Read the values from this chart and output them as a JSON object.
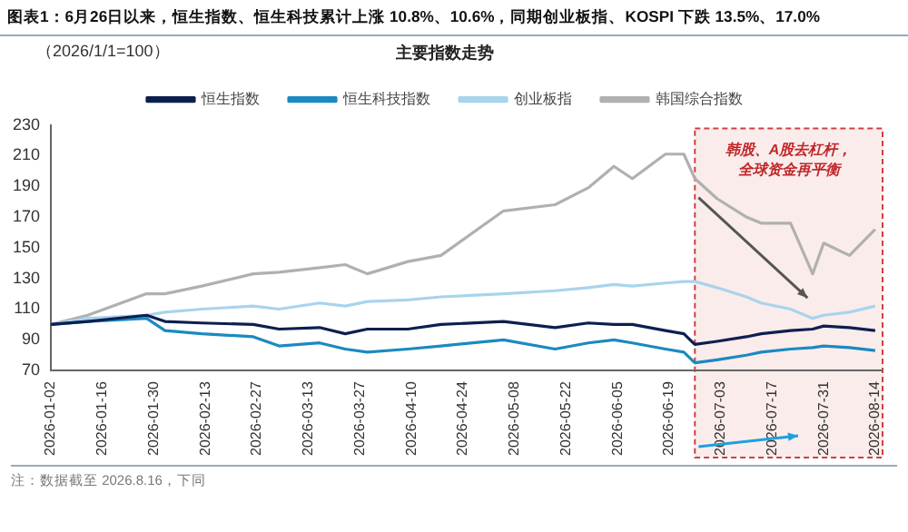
{
  "chart_data": {
    "type": "line",
    "title": "主要指数走势",
    "subtitle": "图表1：6月26日以来，恒生指数、恒生科技累计上涨 10.8%、10.6%，同期创业板指、KOSPI 下跌 13.5%、17.0%",
    "ylabel": "（2026/1/1=100）",
    "x": [
      "2026-01-02",
      "2026-01-12",
      "2026-01-28",
      "2026-02-02",
      "2026-02-12",
      "2026-02-26",
      "2026-03-05",
      "2026-03-16",
      "2026-03-23",
      "2026-03-29",
      "2026-04-09",
      "2026-04-18",
      "2026-05-05",
      "2026-05-19",
      "2026-05-28",
      "2026-06-04",
      "2026-06-09",
      "2026-06-18",
      "2026-06-23",
      "2026-06-26",
      "2026-07-02",
      "2026-07-10",
      "2026-07-14",
      "2026-07-22",
      "2026-07-28",
      "2026-07-31",
      "2026-08-07",
      "2026-08-14"
    ],
    "series": [
      {
        "name": "恒生指数",
        "color": "#0d1f4f",
        "values": [
          100,
          102,
          106,
          102,
          101,
          100,
          97,
          98,
          94,
          97,
          97,
          100,
          102,
          98,
          101,
          100,
          100,
          96,
          94,
          87,
          89,
          92,
          94,
          96,
          97,
          99,
          98,
          96
        ]
      },
      {
        "name": "恒生科技指数",
        "color": "#1a8ac0",
        "values": [
          100,
          102,
          104,
          96,
          94,
          92,
          86,
          88,
          84,
          82,
          84,
          86,
          90,
          84,
          88,
          90,
          88,
          84,
          82,
          75,
          77,
          80,
          82,
          84,
          85,
          86,
          85,
          83
        ]
      },
      {
        "name": "创业板指",
        "color": "#a8d4ec",
        "values": [
          100,
          104,
          106,
          108,
          110,
          112,
          110,
          114,
          112,
          115,
          116,
          118,
          120,
          122,
          124,
          126,
          125,
          127,
          128,
          128,
          124,
          118,
          114,
          110,
          104,
          106,
          108,
          112
        ]
      },
      {
        "name": "韩国综合指数",
        "color": "#b0b0b0",
        "values": [
          100,
          106,
          120,
          120,
          125,
          133,
          134,
          137,
          139,
          133,
          141,
          145,
          174,
          178,
          189,
          203,
          195,
          211,
          211,
          195,
          182,
          170,
          166,
          166,
          133,
          153,
          145,
          162
        ]
      }
    ],
    "xlim": [
      "2026-01-02",
      "2026-08-16"
    ],
    "xticks": [
      "2026-01-02",
      "2026-01-16",
      "2026-01-30",
      "2026-02-13",
      "2026-02-27",
      "2026-03-13",
      "2026-03-27",
      "2026-04-10",
      "2026-04-24",
      "2026-05-08",
      "2026-05-22",
      "2026-06-05",
      "2026-06-19",
      "2026-07-03",
      "2026-07-17",
      "2026-07-31",
      "2026-08-14"
    ],
    "ylim": [
      70,
      230
    ],
    "yticks": [
      70,
      90,
      110,
      130,
      150,
      170,
      190,
      210,
      230
    ],
    "grid": false,
    "legend": "top",
    "marker": "none",
    "line_style": "solid",
    "bands": [
      {
        "axis": "x",
        "from": "2026-06-26",
        "to": "2026-08-16",
        "label": "韩股、A股去杠杆，全球资金再平衡",
        "color": "#fbecec"
      }
    ],
    "annotations": [
      "注：数据截至 2026.8.16，下同"
    ]
  }
}
